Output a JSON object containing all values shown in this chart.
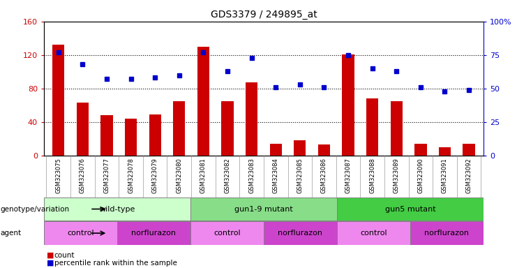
{
  "title": "GDS3379 / 249895_at",
  "samples": [
    "GSM323075",
    "GSM323076",
    "GSM323077",
    "GSM323078",
    "GSM323079",
    "GSM323080",
    "GSM323081",
    "GSM323082",
    "GSM323083",
    "GSM323084",
    "GSM323085",
    "GSM323086",
    "GSM323087",
    "GSM323088",
    "GSM323089",
    "GSM323090",
    "GSM323091",
    "GSM323092"
  ],
  "counts": [
    132,
    63,
    48,
    44,
    49,
    65,
    130,
    65,
    87,
    14,
    18,
    13,
    121,
    68,
    65,
    14,
    10,
    14
  ],
  "percentiles": [
    77,
    68,
    57,
    57,
    58,
    60,
    77,
    63,
    73,
    51,
    53,
    51,
    75,
    65,
    63,
    51,
    48,
    49
  ],
  "ylim_left": [
    0,
    160
  ],
  "ylim_right": [
    0,
    100
  ],
  "yticks_left": [
    0,
    40,
    80,
    120,
    160
  ],
  "yticks_right": [
    0,
    25,
    50,
    75,
    100
  ],
  "ytick_labels_right": [
    "0",
    "25",
    "50",
    "75",
    "100%"
  ],
  "bar_color": "#cc0000",
  "dot_color": "#0000cc",
  "bg_color": "#ffffff",
  "genotype_groups": [
    {
      "label": "wild-type",
      "start": 0,
      "end": 5,
      "color": "#ccffcc"
    },
    {
      "label": "gun1-9 mutant",
      "start": 6,
      "end": 11,
      "color": "#88dd88"
    },
    {
      "label": "gun5 mutant",
      "start": 12,
      "end": 17,
      "color": "#44cc44"
    }
  ],
  "agent_groups": [
    {
      "label": "control",
      "start": 0,
      "end": 2,
      "color": "#ee88ee"
    },
    {
      "label": "norflurazon",
      "start": 3,
      "end": 5,
      "color": "#cc44cc"
    },
    {
      "label": "control",
      "start": 6,
      "end": 8,
      "color": "#ee88ee"
    },
    {
      "label": "norflurazon",
      "start": 9,
      "end": 11,
      "color": "#cc44cc"
    },
    {
      "label": "control",
      "start": 12,
      "end": 14,
      "color": "#ee88ee"
    },
    {
      "label": "norflurazon",
      "start": 15,
      "end": 17,
      "color": "#cc44cc"
    }
  ],
  "xlabel_fontsize": 6,
  "ylabel_fontsize": 8,
  "title_fontsize": 10,
  "label_left": "genotype/variation",
  "label_agent": "agent",
  "legend_count_color": "#cc0000",
  "legend_perc_color": "#0000cc"
}
